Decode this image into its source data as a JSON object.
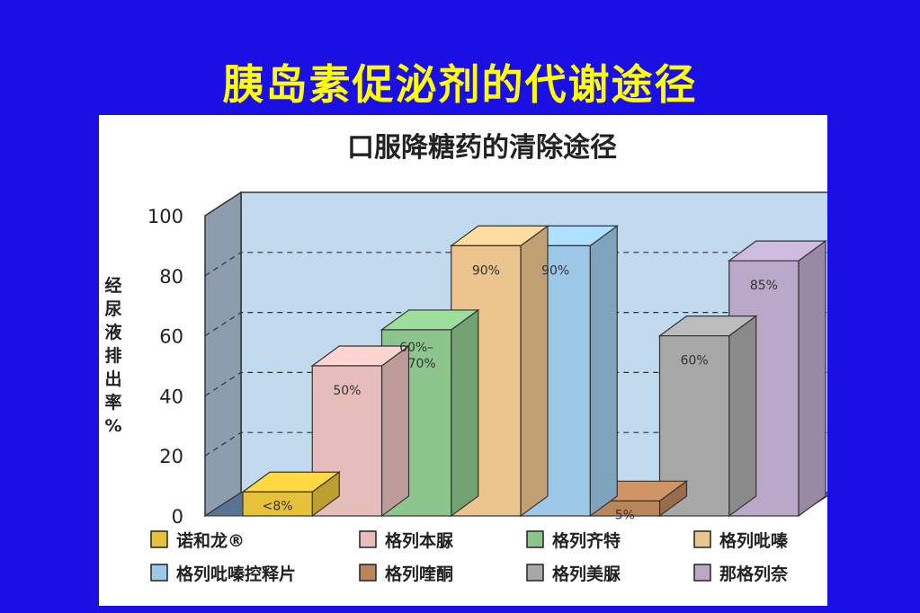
{
  "slide": {
    "title": "胰岛素促泌剂的代谢途径"
  },
  "chart_data": {
    "type": "bar",
    "title": "口服降糖药的清除途径",
    "ylabel": "经尿液排出率%",
    "ylim": [
      0,
      100
    ],
    "yticks": [
      0,
      20,
      40,
      60,
      80,
      100
    ],
    "grid": true,
    "legend_position": "bottom",
    "categories": [
      "诺和龙®",
      "格列本脲",
      "格列齐特",
      "格列吡嗪",
      "格列吡嗪控释片",
      "格列喹酮",
      "格列美脲",
      "那格列奈"
    ],
    "values": [
      8,
      50,
      62,
      90,
      90,
      5,
      60,
      85
    ],
    "labels": [
      "<8%",
      "50%",
      "60%–70%",
      "90%",
      "90%",
      "5%",
      "60%",
      "85%"
    ],
    "colors": [
      "#e6c23a",
      "#e6bdbb",
      "#8cc68c",
      "#ebc48e",
      "#9dc8e8",
      "#b9855a",
      "#a8a8a8",
      "#b9a8c8"
    ]
  }
}
